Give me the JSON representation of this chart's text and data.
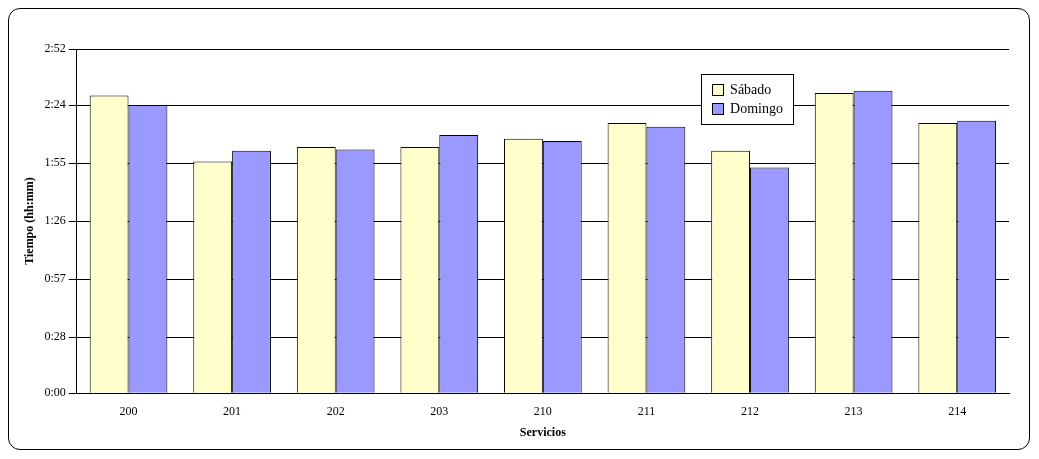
{
  "chart_data": {
    "type": "bar",
    "xlabel": "Servicios",
    "ylabel": "Tiempo (hh:mm)",
    "categories": [
      "200",
      "201",
      "202",
      "203",
      "210",
      "211",
      "212",
      "213",
      "214"
    ],
    "series": [
      {
        "name": "Sábado",
        "color": "#ffffcc",
        "values": [
          2.48,
          1.93,
          2.05,
          2.05,
          2.12,
          2.25,
          2.02,
          2.5,
          2.25
        ]
      },
      {
        "name": "Domingo",
        "color": "#9999ff",
        "values": [
          2.4,
          2.02,
          2.03,
          2.15,
          2.1,
          2.22,
          1.88,
          2.52,
          2.27
        ]
      }
    ],
    "ylim": [
      0,
      2.8667
    ],
    "yticks": [
      {
        "value": 0,
        "label": "0:00"
      },
      {
        "value": 0.4667,
        "label": "0:28"
      },
      {
        "value": 0.95,
        "label": "0:57"
      },
      {
        "value": 1.4333,
        "label": "1:26"
      },
      {
        "value": 1.9167,
        "label": "1:55"
      },
      {
        "value": 2.4,
        "label": "2:24"
      },
      {
        "value": 2.8667,
        "label": "2:52"
      }
    ],
    "grid": "y",
    "legend": "top right"
  }
}
